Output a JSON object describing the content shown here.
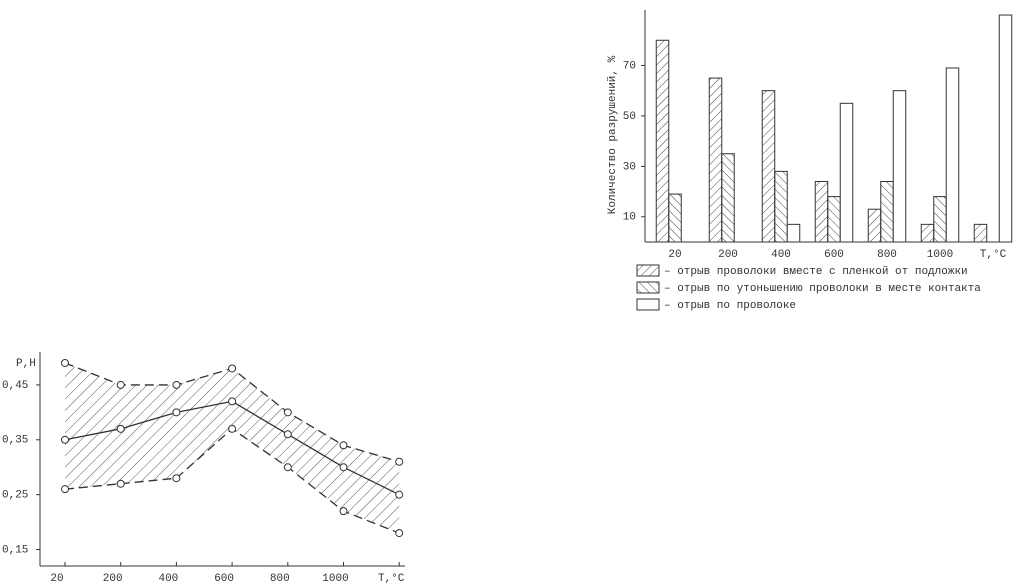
{
  "chart_data": [
    {
      "type": "bar",
      "y_label": "Количество разрушений, %",
      "x_label": "T,°C",
      "categories": [
        "20",
        "200",
        "400",
        "600",
        "800",
        "1000",
        null
      ],
      "series": [
        {
          "name": "– отрыв проволоки вместе с пленкой от подложки",
          "pattern": "hatch-up",
          "values": [
            80,
            65,
            60,
            24,
            13,
            7,
            7
          ]
        },
        {
          "name": "– отрыв по утоньшению проволоки в месте контакта",
          "pattern": "hatch-down",
          "values": [
            19,
            35,
            28,
            18,
            24,
            18,
            null
          ]
        },
        {
          "name": "– отрыв по проволоке",
          "pattern": "none",
          "values": [
            null,
            null,
            7,
            55,
            60,
            69,
            90
          ]
        }
      ],
      "ylim": [
        0,
        92
      ],
      "yticks": [
        10,
        30,
        50,
        70
      ],
      "color": "#333333"
    },
    {
      "type": "line",
      "y_label": "P,H",
      "x_label": "T,°C",
      "band": true,
      "categories": [
        "20",
        "200",
        "400",
        "600",
        "800",
        "1000",
        null
      ],
      "series": [
        {
          "dash": true,
          "values": [
            0.49,
            0.45,
            0.45,
            0.48,
            0.4,
            0.34,
            0.31
          ]
        },
        {
          "dash": false,
          "values": [
            0.35,
            0.37,
            0.4,
            0.42,
            0.36,
            0.3,
            0.25
          ]
        },
        {
          "dash": true,
          "values": [
            0.26,
            0.27,
            0.28,
            0.37,
            0.3,
            0.22,
            0.18
          ]
        }
      ],
      "ylim": [
        0.12,
        0.51
      ],
      "yticks": [
        {
          "value": 0.45,
          "label": "0,45"
        },
        {
          "value": 0.35,
          "label": "0,35"
        },
        {
          "value": 0.25,
          "label": "0,25"
        },
        {
          "value": 0.15,
          "label": "0,15"
        }
      ],
      "color": "#333333"
    }
  ]
}
